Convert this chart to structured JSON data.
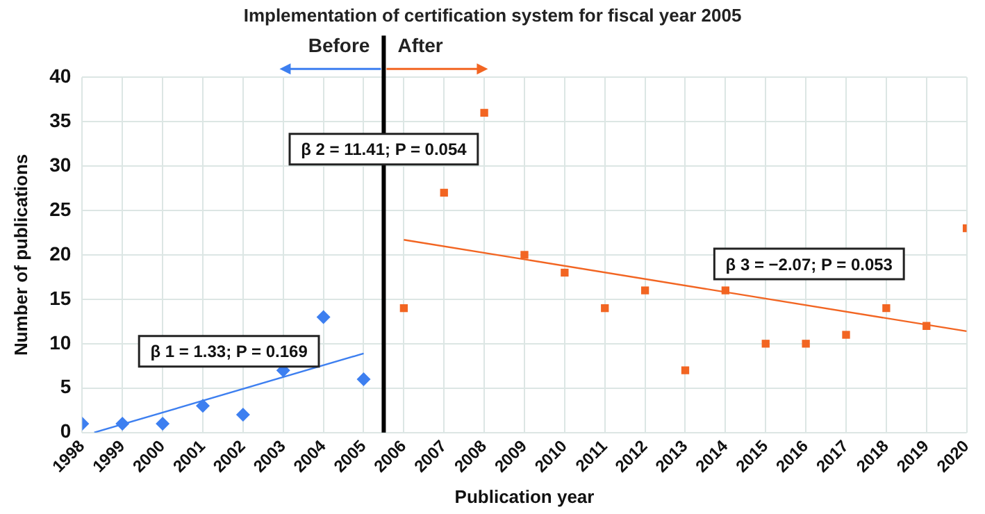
{
  "chart_data": {
    "type": "scatter",
    "title": "Implementation of certification system for fiscal year 2005",
    "xlabel": "Publication year",
    "ylabel": "Number of publications",
    "xlim": [
      1998,
      2020
    ],
    "xticks": [
      1998,
      1999,
      2000,
      2001,
      2002,
      2003,
      2004,
      2005,
      2006,
      2007,
      2008,
      2009,
      2010,
      2011,
      2012,
      2013,
      2014,
      2015,
      2016,
      2017,
      2018,
      2019,
      2020
    ],
    "ylim": [
      0,
      40
    ],
    "yticks": [
      0,
      5,
      10,
      15,
      20,
      25,
      30,
      35,
      40
    ],
    "grid": true,
    "legend": false,
    "series": [
      {
        "marker": "diamond",
        "color": "#3d7ff0",
        "x": [
          1998,
          1999,
          2000,
          2001,
          2002,
          2003,
          2004,
          2005
        ],
        "values": [
          1,
          1,
          1,
          3,
          2,
          7,
          13,
          6
        ]
      },
      {
        "marker": "square",
        "color": "#f26522",
        "x": [
          2006,
          2007,
          2008,
          2009,
          2010,
          2011,
          2012,
          2013,
          2014,
          2015,
          2016,
          2017,
          2018,
          2019,
          2020
        ],
        "values": [
          14,
          27,
          36,
          20,
          18,
          14,
          16,
          7,
          16,
          10,
          10,
          11,
          14,
          12,
          23
        ]
      },
      {
        "type": "line",
        "marker": "none",
        "color": "#3d7ff0",
        "x": [
          1998.3,
          2005
        ],
        "values": [
          0,
          8.9
        ]
      },
      {
        "type": "line",
        "marker": "none",
        "color": "#f26522",
        "x": [
          2006,
          2020
        ],
        "values": [
          21.7,
          11.4
        ]
      }
    ],
    "ref_lines": [
      {
        "axis": "x",
        "value": 2005.5,
        "color": "#000000"
      }
    ],
    "annotations": [
      "Before",
      "After",
      "β 1 = 1.33; P = 0.169",
      {
        "text": "β 2 = 11.41; P = 0.054",
        "x": 2005.5,
        "y": 31.9
      },
      "β 3 = −2.07; P = 0.053"
    ]
  }
}
